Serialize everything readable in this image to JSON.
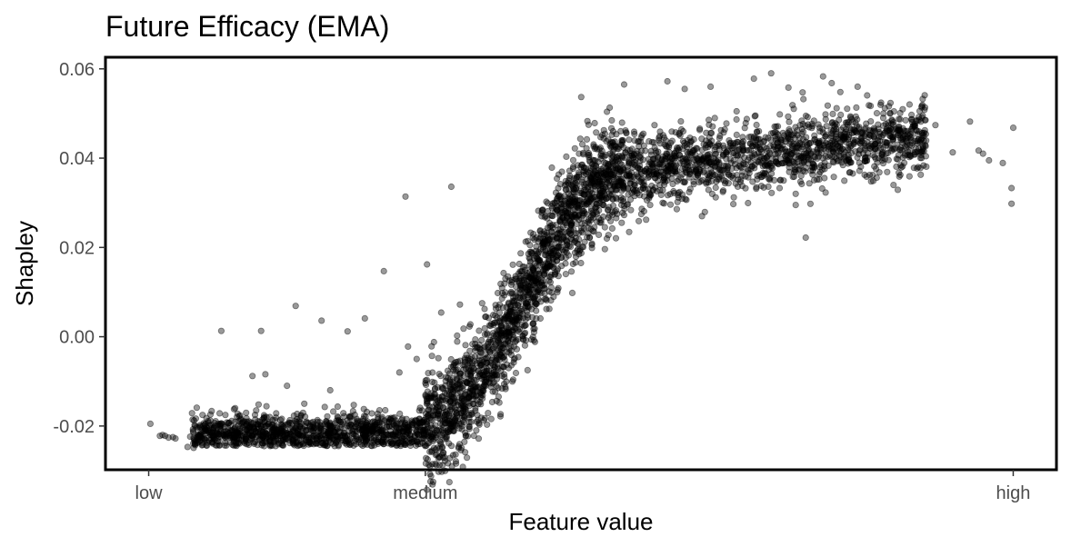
{
  "chart_data": {
    "type": "scatter",
    "title": "Future Efficacy (EMA)",
    "xlabel": "Feature value",
    "ylabel": "Shapley",
    "x_axis": {
      "type": "ordinal-continuous",
      "range": [
        -0.05,
        1.05
      ],
      "ticks": [
        {
          "label": "low",
          "value": 0.0
        },
        {
          "label": "medium",
          "value": 0.32
        },
        {
          "label": "high",
          "value": 1.0
        }
      ]
    },
    "y_axis": {
      "range": [
        -0.0298,
        0.0626
      ],
      "ticks": [
        {
          "label": "-0.02",
          "value": -0.02
        },
        {
          "label": "0.00",
          "value": 0.0
        },
        {
          "label": "0.02",
          "value": 0.02
        },
        {
          "label": "0.04",
          "value": 0.04
        },
        {
          "label": "0.06",
          "value": 0.06
        }
      ]
    },
    "grid": false,
    "legend": "none",
    "point_color": "#000000",
    "point_opacity": 0.4,
    "series": [
      {
        "points": [
          [
            0.002,
            -0.0195
          ],
          [
            0.013,
            -0.0222
          ],
          [
            0.016,
            -0.022
          ],
          [
            0.019,
            -0.0222
          ],
          [
            0.023,
            -0.0226
          ],
          [
            0.028,
            -0.0225
          ],
          [
            0.031,
            -0.0228
          ],
          [
            0.045,
            -0.0247
          ],
          [
            0.052,
            -0.0249
          ],
          [
            0.048,
            -0.0224
          ],
          [
            0.06,
            -0.0218
          ],
          [
            0.065,
            -0.021
          ],
          [
            0.07,
            -0.0232
          ],
          [
            0.075,
            -0.0206
          ],
          [
            0.09,
            -0.0219
          ],
          [
            0.1,
            -0.0203
          ],
          [
            0.11,
            -0.0235
          ],
          [
            0.084,
            0.0013
          ],
          [
            0.13,
            0.0013
          ],
          [
            0.17,
            0.0069
          ],
          [
            0.2,
            0.0036
          ],
          [
            0.12,
            -0.0088
          ],
          [
            0.135,
            -0.0084
          ],
          [
            0.23,
            0.0012
          ],
          [
            0.25,
            0.0041
          ],
          [
            0.272,
            0.0147
          ],
          [
            0.297,
            0.0314
          ],
          [
            0.322,
            0.0162
          ],
          [
            0.35,
            0.0336
          ],
          [
            0.27,
            -0.018
          ],
          [
            0.29,
            -0.008
          ],
          [
            0.31,
            -0.005
          ],
          [
            0.21,
            -0.012
          ],
          [
            0.18,
            -0.015
          ],
          [
            0.16,
            -0.011
          ],
          [
            0.1,
            -0.016
          ],
          [
            0.14,
            -0.018
          ],
          [
            0.55,
            0.0565
          ],
          [
            0.6,
            0.0572
          ],
          [
            0.62,
            0.0555
          ],
          [
            0.65,
            0.056
          ],
          [
            0.7,
            0.0578
          ],
          [
            0.72,
            0.059
          ],
          [
            0.74,
            0.0558
          ],
          [
            0.78,
            0.0583
          ],
          [
            0.79,
            0.0568
          ],
          [
            0.8,
            0.0548
          ],
          [
            0.82,
            0.056
          ],
          [
            0.845,
            0.0458
          ],
          [
            0.86,
            0.0484
          ],
          [
            0.91,
            0.0474
          ],
          [
            0.95,
            0.0482
          ],
          [
            0.96,
            0.0417
          ],
          [
            0.965,
            0.041
          ],
          [
            0.972,
            0.0395
          ],
          [
            0.988,
            0.0389
          ],
          [
            0.998,
            0.0333
          ],
          [
            0.998,
            0.0298
          ],
          [
            1.0,
            0.0468
          ],
          [
            0.93,
            0.0413
          ],
          [
            0.89,
            0.038
          ],
          [
            0.84,
            0.042
          ],
          [
            0.76,
            0.0222
          ],
          [
            0.64,
            0.027
          ],
          [
            0.58,
            0.0295
          ],
          [
            0.53,
            0.022
          ],
          [
            0.5,
            0.0165
          ],
          [
            0.46,
            0.0062
          ],
          [
            0.49,
            0.0098
          ],
          [
            0.44,
            0.0106
          ],
          [
            0.39,
            0.0045
          ],
          [
            0.42,
            0.0122
          ],
          [
            0.36,
            0.0072
          ],
          [
            0.33,
            -0.0012
          ],
          [
            0.3,
            -0.0022
          ],
          [
            0.62,
            0.0428
          ],
          [
            0.66,
            0.039
          ],
          [
            0.7,
            0.0445
          ],
          [
            0.73,
            0.0498
          ],
          [
            0.68,
            0.0505
          ],
          [
            0.75,
            0.0462
          ],
          [
            0.81,
            0.0452
          ],
          [
            0.57,
            0.0365
          ],
          [
            0.54,
            0.033
          ]
        ],
        "dense_band": {
          "description": "cloud of points following a sigmoid from low to high",
          "segments": [
            {
              "x_from": 0.05,
              "x_to": 0.32,
              "y_center_from": -0.0215,
              "y_center_to": -0.0212,
              "spread": 0.002
            },
            {
              "x_from": 0.32,
              "x_to": 0.55,
              "y_center_from": -0.019,
              "y_center_to": 0.037,
              "spread": 0.006
            },
            {
              "x_from": 0.55,
              "x_to": 0.9,
              "y_center_from": 0.037,
              "y_center_to": 0.045,
              "spread": 0.004
            }
          ],
          "count": 4200
        }
      }
    ]
  }
}
